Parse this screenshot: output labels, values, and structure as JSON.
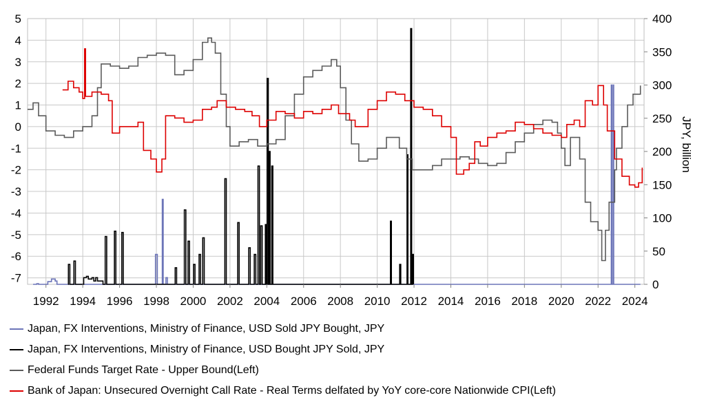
{
  "chart_data": {
    "type": "line",
    "title": "",
    "xlabel": "",
    "ylabel_left": "",
    "ylabel_right": "JPY, billion",
    "x_ticks": [
      "1992",
      "1994",
      "1996",
      "1998",
      "2000",
      "2002",
      "2004",
      "2006",
      "2008",
      "2010",
      "2012",
      "2014",
      "2016",
      "2018",
      "2020",
      "2022",
      "2024"
    ],
    "left_axis": {
      "ylim": [
        -7.3,
        5
      ],
      "ticks": [
        "5",
        "4",
        "3",
        "2",
        "1",
        "0",
        "-1",
        "-2",
        "-3",
        "-4",
        "-5",
        "-6",
        "-7"
      ]
    },
    "right_axis": {
      "ylim": [
        0,
        400
      ],
      "ticks": [
        "400",
        "350",
        "300",
        "250",
        "200",
        "150",
        "100",
        "50",
        "0"
      ]
    },
    "grid": true,
    "legend_position": "bottom",
    "series": [
      {
        "name": "Japan, FX Interventions, Ministry of Finance, USD Sold JPY Bought, JPY",
        "axis": "right",
        "color": "#6b74b8",
        "style": "step",
        "points": [
          [
            1991.3,
            0
          ],
          [
            1991.5,
            1
          ],
          [
            1991.6,
            0
          ],
          [
            1992.0,
            0
          ],
          [
            1992.1,
            4
          ],
          [
            1992.3,
            8
          ],
          [
            1992.5,
            5
          ],
          [
            1992.6,
            0
          ],
          [
            1997.9,
            0
          ],
          [
            1997.95,
            45
          ],
          [
            1998.05,
            0
          ],
          [
            1998.3,
            0
          ],
          [
            1998.32,
            128
          ],
          [
            1998.37,
            0
          ],
          [
            1998.5,
            0
          ],
          [
            1998.52,
            10
          ],
          [
            1998.6,
            0
          ],
          [
            2022.7,
            0
          ],
          [
            2022.72,
            300
          ],
          [
            2022.75,
            0
          ],
          [
            2022.8,
            0
          ],
          [
            2022.82,
            300
          ],
          [
            2022.85,
            0
          ],
          [
            2024.3,
            0
          ]
        ]
      },
      {
        "name": "Japan, FX Interventions, Ministry of Finance, USD Bought JPY Sold, JPY",
        "axis": "right",
        "color": "#000000",
        "style": "step",
        "points": [
          [
            1993.2,
            0
          ],
          [
            1993.22,
            30
          ],
          [
            1993.3,
            0
          ],
          [
            1993.5,
            0
          ],
          [
            1993.52,
            35
          ],
          [
            1993.6,
            0
          ],
          [
            1994.0,
            0
          ],
          [
            1994.05,
            10
          ],
          [
            1994.2,
            12
          ],
          [
            1994.3,
            8
          ],
          [
            1994.5,
            10
          ],
          [
            1994.6,
            5
          ],
          [
            1994.7,
            10
          ],
          [
            1994.8,
            5
          ],
          [
            1995.0,
            5
          ],
          [
            1995.1,
            0
          ],
          [
            1995.2,
            0
          ],
          [
            1995.22,
            72
          ],
          [
            1995.3,
            0
          ],
          [
            1995.7,
            0
          ],
          [
            1995.72,
            80
          ],
          [
            1995.8,
            0
          ],
          [
            1996.1,
            0
          ],
          [
            1996.12,
            78
          ],
          [
            1996.2,
            0
          ],
          [
            1999.0,
            0
          ],
          [
            1999.02,
            25
          ],
          [
            1999.1,
            0
          ],
          [
            1999.5,
            0
          ],
          [
            1999.52,
            112
          ],
          [
            1999.6,
            0
          ],
          [
            1999.7,
            0
          ],
          [
            1999.72,
            65
          ],
          [
            1999.8,
            0
          ],
          [
            2000.0,
            0
          ],
          [
            2000.02,
            30
          ],
          [
            2000.1,
            0
          ],
          [
            2000.3,
            0
          ],
          [
            2000.32,
            45
          ],
          [
            2000.4,
            0
          ],
          [
            2000.5,
            0
          ],
          [
            2000.52,
            70
          ],
          [
            2000.6,
            0
          ],
          [
            2001.7,
            0
          ],
          [
            2001.72,
            159
          ],
          [
            2001.8,
            0
          ],
          [
            2002.4,
            0
          ],
          [
            2002.42,
            93
          ],
          [
            2002.5,
            0
          ],
          [
            2003.0,
            0
          ],
          [
            2003.02,
            55
          ],
          [
            2003.1,
            0
          ],
          [
            2003.3,
            0
          ],
          [
            2003.32,
            45
          ],
          [
            2003.4,
            0
          ],
          [
            2003.5,
            0
          ],
          [
            2003.52,
            178
          ],
          [
            2003.6,
            0
          ],
          [
            2003.65,
            0
          ],
          [
            2003.67,
            88
          ],
          [
            2003.75,
            0
          ],
          [
            2003.9,
            0
          ],
          [
            2003.92,
            90
          ],
          [
            2003.98,
            0
          ],
          [
            2004.0,
            0
          ],
          [
            2004.02,
            310
          ],
          [
            2004.08,
            0
          ],
          [
            2004.1,
            0
          ],
          [
            2004.12,
            200
          ],
          [
            2004.18,
            0
          ],
          [
            2004.25,
            0
          ],
          [
            2004.27,
            178
          ],
          [
            2004.33,
            0
          ],
          [
            2010.7,
            0
          ],
          [
            2010.72,
            95
          ],
          [
            2010.77,
            0
          ],
          [
            2011.2,
            0
          ],
          [
            2011.22,
            30
          ],
          [
            2011.28,
            0
          ],
          [
            2011.6,
            0
          ],
          [
            2011.62,
            195
          ],
          [
            2011.67,
            0
          ],
          [
            2011.8,
            0
          ],
          [
            2011.82,
            385
          ],
          [
            2011.87,
            0
          ],
          [
            2011.9,
            0
          ],
          [
            2011.92,
            45
          ],
          [
            2011.97,
            0
          ]
        ]
      },
      {
        "name": "Federal Funds Target Rate - Upper Bound(Left)",
        "axis": "left",
        "color": "#5a5a5a",
        "style": "step",
        "points": [
          [
            1991.0,
            0.8
          ],
          [
            1991.3,
            1.1
          ],
          [
            1991.6,
            0.5
          ],
          [
            1992.0,
            -0.2
          ],
          [
            1992.5,
            -0.4
          ],
          [
            1993.0,
            -0.5
          ],
          [
            1993.5,
            -0.2
          ],
          [
            1994.0,
            0.0
          ],
          [
            1994.5,
            0.5
          ],
          [
            1994.8,
            1.8
          ],
          [
            1995.0,
            2.9
          ],
          [
            1995.5,
            2.8
          ],
          [
            1996.0,
            2.7
          ],
          [
            1996.5,
            2.8
          ],
          [
            1997.0,
            3.2
          ],
          [
            1997.5,
            3.3
          ],
          [
            1998.0,
            3.4
          ],
          [
            1998.5,
            3.3
          ],
          [
            1999.0,
            2.4
          ],
          [
            1999.5,
            2.6
          ],
          [
            2000.0,
            3.1
          ],
          [
            2000.5,
            3.9
          ],
          [
            2000.8,
            4.1
          ],
          [
            2001.0,
            3.9
          ],
          [
            2001.2,
            3.4
          ],
          [
            2001.5,
            1.5
          ],
          [
            2001.8,
            0.0
          ],
          [
            2002.0,
            -0.9
          ],
          [
            2002.5,
            -0.7
          ],
          [
            2003.0,
            -0.6
          ],
          [
            2003.5,
            -0.9
          ],
          [
            2004.0,
            -0.8
          ],
          [
            2004.5,
            -0.6
          ],
          [
            2005.0,
            0.5
          ],
          [
            2005.5,
            1.5
          ],
          [
            2006.0,
            2.3
          ],
          [
            2006.5,
            2.6
          ],
          [
            2007.0,
            2.8
          ],
          [
            2007.5,
            3.1
          ],
          [
            2007.8,
            2.8
          ],
          [
            2008.0,
            1.8
          ],
          [
            2008.3,
            0.3
          ],
          [
            2008.6,
            -0.8
          ],
          [
            2009.0,
            -1.6
          ],
          [
            2009.5,
            -1.5
          ],
          [
            2010.0,
            -1.0
          ],
          [
            2010.5,
            -0.5
          ],
          [
            2010.8,
            -0.5
          ],
          [
            2011.2,
            -1.0
          ],
          [
            2011.6,
            -1.5
          ],
          [
            2011.9,
            -2.0
          ],
          [
            2012.5,
            -2.0
          ],
          [
            2013.0,
            -1.8
          ],
          [
            2013.5,
            -1.5
          ],
          [
            2014.0,
            -1.5
          ],
          [
            2014.5,
            -1.4
          ],
          [
            2015.0,
            -1.5
          ],
          [
            2015.5,
            -1.7
          ],
          [
            2016.0,
            -1.8
          ],
          [
            2016.5,
            -1.7
          ],
          [
            2017.0,
            -1.2
          ],
          [
            2017.5,
            -0.7
          ],
          [
            2018.0,
            -0.3
          ],
          [
            2018.5,
            0.1
          ],
          [
            2019.0,
            0.3
          ],
          [
            2019.5,
            0.2
          ],
          [
            2019.8,
            -0.3
          ],
          [
            2020.0,
            -1.0
          ],
          [
            2020.2,
            -1.8
          ],
          [
            2020.5,
            -0.5
          ],
          [
            2021.0,
            -1.5
          ],
          [
            2021.3,
            -3.5
          ],
          [
            2021.6,
            -4.4
          ],
          [
            2022.0,
            -4.8
          ],
          [
            2022.2,
            -6.2
          ],
          [
            2022.4,
            -4.8
          ],
          [
            2022.6,
            -3.5
          ],
          [
            2022.9,
            -2.0
          ],
          [
            2023.0,
            -1.0
          ],
          [
            2023.3,
            0.0
          ],
          [
            2023.6,
            1.0
          ],
          [
            2023.9,
            1.5
          ],
          [
            2024.3,
            1.9
          ]
        ]
      },
      {
        "name": "Bank of Japan: Unsecured Overnight Call Rate - Real Terms delfated by YoY core-core Nationwide CPI(Left)",
        "axis": "left",
        "color": "#dd0000",
        "style": "step",
        "points": [
          [
            1992.9,
            1.7
          ],
          [
            1993.2,
            2.1
          ],
          [
            1993.5,
            1.8
          ],
          [
            1993.8,
            1.6
          ],
          [
            1994.0,
            1.3
          ],
          [
            1994.1,
            3.6
          ],
          [
            1994.15,
            1.4
          ],
          [
            1994.5,
            1.6
          ],
          [
            1995.0,
            1.5
          ],
          [
            1995.4,
            1.2
          ],
          [
            1995.6,
            -0.3
          ],
          [
            1996.0,
            0.0
          ],
          [
            1996.5,
            0.0
          ],
          [
            1997.0,
            0.2
          ],
          [
            1997.3,
            -1.1
          ],
          [
            1997.7,
            -1.5
          ],
          [
            1998.0,
            -2.1
          ],
          [
            1998.3,
            -1.5
          ],
          [
            1998.5,
            0.5
          ],
          [
            1999.0,
            0.4
          ],
          [
            1999.5,
            0.2
          ],
          [
            2000.0,
            0.3
          ],
          [
            2000.5,
            0.8
          ],
          [
            2001.0,
            0.9
          ],
          [
            2001.3,
            1.2
          ],
          [
            2001.8,
            0.9
          ],
          [
            2002.3,
            0.8
          ],
          [
            2002.8,
            0.7
          ],
          [
            2003.2,
            0.5
          ],
          [
            2003.6,
            0.0
          ],
          [
            2004.0,
            0.3
          ],
          [
            2004.5,
            0.7
          ],
          [
            2005.0,
            0.6
          ],
          [
            2005.5,
            0.4
          ],
          [
            2006.0,
            0.7
          ],
          [
            2006.5,
            0.6
          ],
          [
            2007.0,
            0.8
          ],
          [
            2007.5,
            1.0
          ],
          [
            2007.9,
            0.6
          ],
          [
            2008.5,
            0.3
          ],
          [
            2008.8,
            0.0
          ],
          [
            2009.5,
            0.8
          ],
          [
            2010.0,
            1.2
          ],
          [
            2010.5,
            1.6
          ],
          [
            2011.0,
            1.5
          ],
          [
            2011.5,
            1.2
          ],
          [
            2012.0,
            0.9
          ],
          [
            2012.5,
            0.8
          ],
          [
            2013.0,
            0.5
          ],
          [
            2013.5,
            0.0
          ],
          [
            2014.0,
            -0.5
          ],
          [
            2014.3,
            -2.2
          ],
          [
            2014.7,
            -2.0
          ],
          [
            2015.0,
            -1.7
          ],
          [
            2015.3,
            -0.7
          ],
          [
            2015.6,
            -0.9
          ],
          [
            2016.0,
            -0.5
          ],
          [
            2016.5,
            -0.3
          ],
          [
            2017.0,
            -0.2
          ],
          [
            2017.5,
            0.2
          ],
          [
            2018.0,
            0.1
          ],
          [
            2018.5,
            -0.1
          ],
          [
            2019.0,
            -0.3
          ],
          [
            2019.5,
            -0.4
          ],
          [
            2020.0,
            -0.5
          ],
          [
            2020.3,
            0.1
          ],
          [
            2020.7,
            0.3
          ],
          [
            2021.0,
            0.0
          ],
          [
            2021.3,
            1.2
          ],
          [
            2021.7,
            1.0
          ],
          [
            2022.0,
            1.9
          ],
          [
            2022.3,
            1.0
          ],
          [
            2022.5,
            -0.2
          ],
          [
            2022.9,
            -1.5
          ],
          [
            2023.3,
            -2.3
          ],
          [
            2023.7,
            -2.7
          ],
          [
            2024.0,
            -2.8
          ],
          [
            2024.2,
            -2.6
          ],
          [
            2024.4,
            -1.9
          ]
        ]
      }
    ]
  }
}
